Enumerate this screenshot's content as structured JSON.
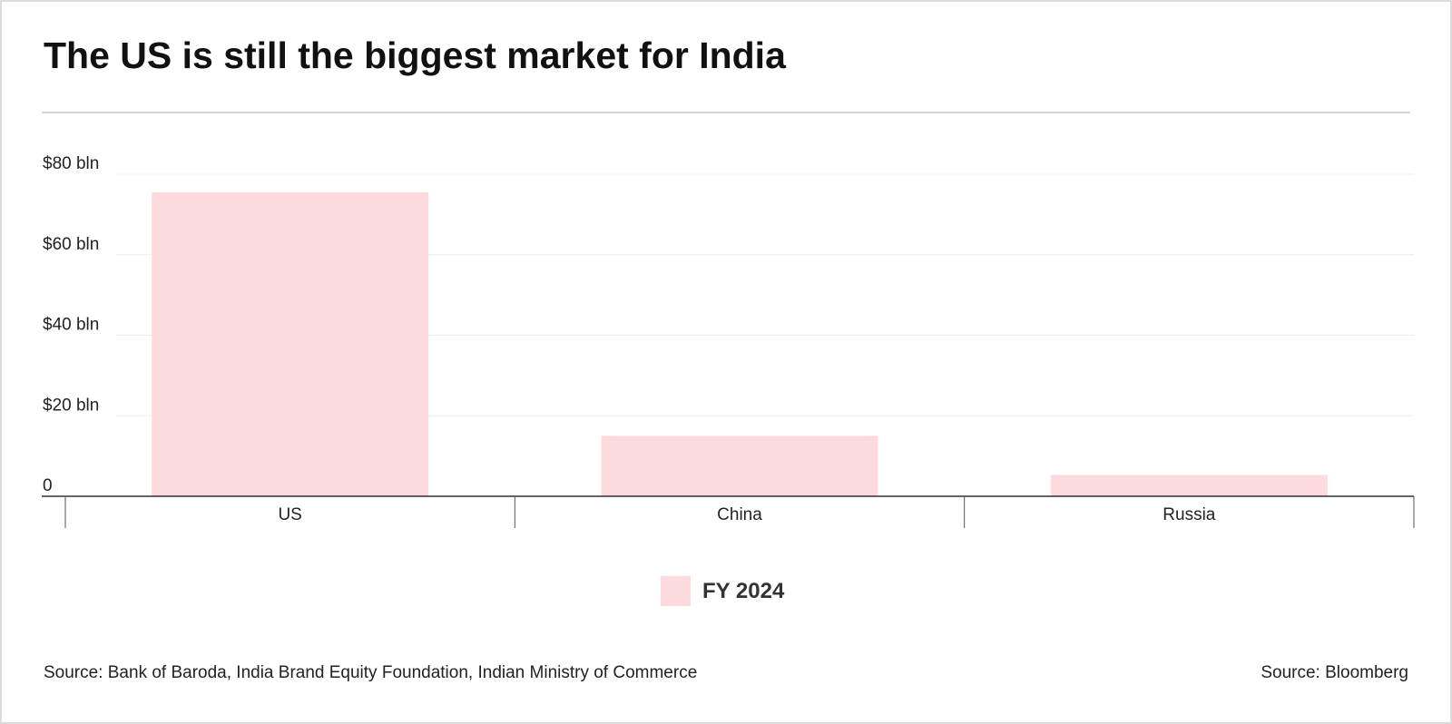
{
  "title": "The US is still the biggest market for India",
  "chart_data": {
    "type": "bar",
    "title": "The US is still the biggest market for India",
    "categories": [
      "US",
      "China",
      "Russia"
    ],
    "series": [
      {
        "name": "FY 2024",
        "values": [
          75.5,
          15,
          5.3
        ]
      }
    ],
    "ylim": [
      0,
      80
    ],
    "yticks": [
      0,
      20,
      40,
      60,
      80
    ],
    "ytick_labels": [
      "0",
      "$20 bln",
      "$40 bln",
      "$60 bln",
      "$80 bln"
    ],
    "xlabel": "",
    "ylabel": "",
    "grid": true,
    "legend": "bottom-center",
    "bar_color": "#fddadd"
  },
  "legend": {
    "label": "FY 2024"
  },
  "source_left": "Source: Bank of Baroda, India Brand Equity Foundation, Indian Ministry of Commerce",
  "source_right": "Source: Bloomberg"
}
